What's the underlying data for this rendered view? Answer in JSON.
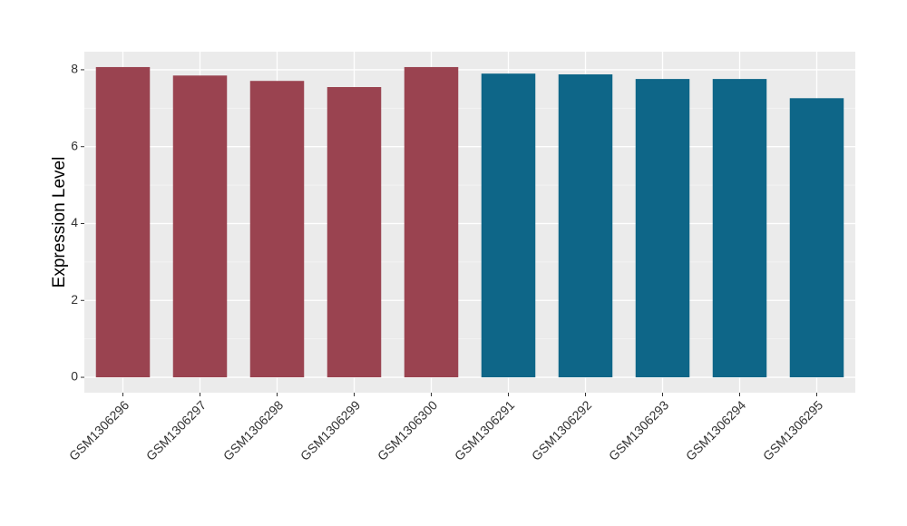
{
  "chart_data": {
    "type": "bar",
    "y_label": "Expression Level",
    "categories": [
      "GSM1306296",
      "GSM1306297",
      "GSM1306298",
      "GSM1306299",
      "GSM1306300",
      "GSM1306291",
      "GSM1306292",
      "GSM1306293",
      "GSM1306294",
      "GSM1306295"
    ],
    "values": [
      8.07,
      7.85,
      7.71,
      7.55,
      8.07,
      7.9,
      7.88,
      7.76,
      7.76,
      7.26
    ],
    "colors": [
      "#9a4350",
      "#9a4350",
      "#9a4350",
      "#9a4350",
      "#9a4350",
      "#0e6688",
      "#0e6688",
      "#0e6688",
      "#0e6688",
      "#0e6688"
    ],
    "ylim": [
      -0.4,
      8.47
    ],
    "yticks": [
      0,
      2,
      4,
      6,
      8
    ],
    "minor_yticks": [
      1,
      3,
      5,
      7
    ],
    "grid": true
  }
}
